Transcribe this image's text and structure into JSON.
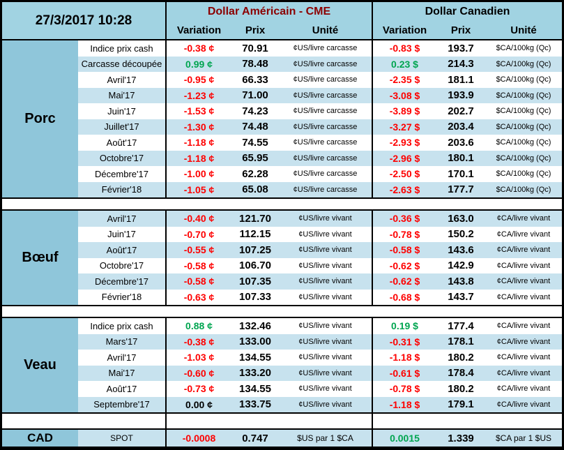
{
  "meta": {
    "timestamp": "27/3/2017 10:28"
  },
  "header": {
    "us": {
      "title": "Dollar Américain - CME",
      "cols": [
        "Variation",
        "Prix",
        "Unité"
      ]
    },
    "ca": {
      "title": "Dollar Canadien",
      "cols": [
        "Variation",
        "Prix",
        "Unité"
      ]
    }
  },
  "colors": {
    "header_blue": "#A1D3E2",
    "section_blue": "#8FC6DA",
    "row_alt_blue": "#C7E2EE",
    "negative_red": "#FE0000",
    "positive_green": "#00A550",
    "us_title_dark_red": "#8B0000",
    "border_black": "#000000"
  },
  "sections": [
    {
      "name": "Porc",
      "rows": [
        {
          "label": "Indice prix cash",
          "us_var": "-0.38 ¢",
          "us_dir": "neg",
          "us_prix": "70.91",
          "us_unit": "¢US/livre carcasse",
          "ca_var": "-0.83 $",
          "ca_dir": "neg",
          "ca_prix": "193.7",
          "ca_unit": "$CA/100kg (Qc)"
        },
        {
          "label": "Carcasse découpée",
          "us_var": "0.99 ¢",
          "us_dir": "pos",
          "us_prix": "78.48",
          "us_unit": "¢US/livre carcasse",
          "ca_var": "0.23 $",
          "ca_dir": "pos",
          "ca_prix": "214.3",
          "ca_unit": "$CA/100kg (Qc)"
        },
        {
          "label": "Avril'17",
          "us_var": "-0.95 ¢",
          "us_dir": "neg",
          "us_prix": "66.33",
          "us_unit": "¢US/livre carcasse",
          "ca_var": "-2.35 $",
          "ca_dir": "neg",
          "ca_prix": "181.1",
          "ca_unit": "$CA/100kg (Qc)"
        },
        {
          "label": "Mai'17",
          "us_var": "-1.23 ¢",
          "us_dir": "neg",
          "us_prix": "71.00",
          "us_unit": "¢US/livre carcasse",
          "ca_var": "-3.08 $",
          "ca_dir": "neg",
          "ca_prix": "193.9",
          "ca_unit": "$CA/100kg (Qc)"
        },
        {
          "label": "Juin'17",
          "us_var": "-1.53 ¢",
          "us_dir": "neg",
          "us_prix": "74.23",
          "us_unit": "¢US/livre carcasse",
          "ca_var": "-3.89 $",
          "ca_dir": "neg",
          "ca_prix": "202.7",
          "ca_unit": "$CA/100kg (Qc)"
        },
        {
          "label": "Juillet'17",
          "us_var": "-1.30 ¢",
          "us_dir": "neg",
          "us_prix": "74.48",
          "us_unit": "¢US/livre carcasse",
          "ca_var": "-3.27 $",
          "ca_dir": "neg",
          "ca_prix": "203.4",
          "ca_unit": "$CA/100kg (Qc)"
        },
        {
          "label": "Août'17",
          "us_var": "-1.18 ¢",
          "us_dir": "neg",
          "us_prix": "74.55",
          "us_unit": "¢US/livre carcasse",
          "ca_var": "-2.93 $",
          "ca_dir": "neg",
          "ca_prix": "203.6",
          "ca_unit": "$CA/100kg (Qc)"
        },
        {
          "label": "Octobre'17",
          "us_var": "-1.18 ¢",
          "us_dir": "neg",
          "us_prix": "65.95",
          "us_unit": "¢US/livre carcasse",
          "ca_var": "-2.96 $",
          "ca_dir": "neg",
          "ca_prix": "180.1",
          "ca_unit": "$CA/100kg (Qc)"
        },
        {
          "label": "Décembre'17",
          "us_var": "-1.00 ¢",
          "us_dir": "neg",
          "us_prix": "62.28",
          "us_unit": "¢US/livre carcasse",
          "ca_var": "-2.50 $",
          "ca_dir": "neg",
          "ca_prix": "170.1",
          "ca_unit": "$CA/100kg (Qc)"
        },
        {
          "label": "Février'18",
          "us_var": "-1.05 ¢",
          "us_dir": "neg",
          "us_prix": "65.08",
          "us_unit": "¢US/livre carcasse",
          "ca_var": "-2.63 $",
          "ca_dir": "neg",
          "ca_prix": "177.7",
          "ca_unit": "$CA/100kg (Qc)"
        }
      ]
    },
    {
      "name": "Bœuf",
      "rows": [
        {
          "label": "Avril'17",
          "us_var": "-0.40 ¢",
          "us_dir": "neg",
          "us_prix": "121.70",
          "us_unit": "¢US/livre vivant",
          "ca_var": "-0.36 $",
          "ca_dir": "neg",
          "ca_prix": "163.0",
          "ca_unit": "¢CA/livre vivant"
        },
        {
          "label": "Juin'17",
          "us_var": "-0.70 ¢",
          "us_dir": "neg",
          "us_prix": "112.15",
          "us_unit": "¢US/livre vivant",
          "ca_var": "-0.78 $",
          "ca_dir": "neg",
          "ca_prix": "150.2",
          "ca_unit": "¢CA/livre vivant"
        },
        {
          "label": "Août'17",
          "us_var": "-0.55 ¢",
          "us_dir": "neg",
          "us_prix": "107.25",
          "us_unit": "¢US/livre vivant",
          "ca_var": "-0.58 $",
          "ca_dir": "neg",
          "ca_prix": "143.6",
          "ca_unit": "¢CA/livre vivant"
        },
        {
          "label": "Octobre'17",
          "us_var": "-0.58 ¢",
          "us_dir": "neg",
          "us_prix": "106.70",
          "us_unit": "¢US/livre vivant",
          "ca_var": "-0.62 $",
          "ca_dir": "neg",
          "ca_prix": "142.9",
          "ca_unit": "¢CA/livre vivant"
        },
        {
          "label": "Décembre'17",
          "us_var": "-0.58 ¢",
          "us_dir": "neg",
          "us_prix": "107.35",
          "us_unit": "¢US/livre vivant",
          "ca_var": "-0.62 $",
          "ca_dir": "neg",
          "ca_prix": "143.8",
          "ca_unit": "¢CA/livre vivant"
        },
        {
          "label": "Février'18",
          "us_var": "-0.63 ¢",
          "us_dir": "neg",
          "us_prix": "107.33",
          "us_unit": "¢US/livre vivant",
          "ca_var": "-0.68 $",
          "ca_dir": "neg",
          "ca_prix": "143.7",
          "ca_unit": "¢CA/livre vivant"
        }
      ]
    },
    {
      "name": "Veau",
      "rows": [
        {
          "label": "Indice prix cash",
          "us_var": "0.88 ¢",
          "us_dir": "pos",
          "us_prix": "132.46",
          "us_unit": "¢US/livre vivant",
          "ca_var": "0.19 $",
          "ca_dir": "pos",
          "ca_prix": "177.4",
          "ca_unit": "¢CA/livre vivant"
        },
        {
          "label": "Mars'17",
          "us_var": "-0.38 ¢",
          "us_dir": "neg",
          "us_prix": "133.00",
          "us_unit": "¢US/livre vivant",
          "ca_var": "-0.31 $",
          "ca_dir": "neg",
          "ca_prix": "178.1",
          "ca_unit": "¢CA/livre vivant"
        },
        {
          "label": "Avril'17",
          "us_var": "-1.03 ¢",
          "us_dir": "neg",
          "us_prix": "134.55",
          "us_unit": "¢US/livre vivant",
          "ca_var": "-1.18 $",
          "ca_dir": "neg",
          "ca_prix": "180.2",
          "ca_unit": "¢CA/livre vivant"
        },
        {
          "label": "Mai'17",
          "us_var": "-0.60 ¢",
          "us_dir": "neg",
          "us_prix": "133.20",
          "us_unit": "¢US/livre vivant",
          "ca_var": "-0.61 $",
          "ca_dir": "neg",
          "ca_prix": "178.4",
          "ca_unit": "¢CA/livre vivant"
        },
        {
          "label": "Août'17",
          "us_var": "-0.73 ¢",
          "us_dir": "neg",
          "us_prix": "134.55",
          "us_unit": "¢US/livre vivant",
          "ca_var": "-0.78 $",
          "ca_dir": "neg",
          "ca_prix": "180.2",
          "ca_unit": "¢CA/livre vivant"
        },
        {
          "label": "Septembre'17",
          "us_var": "0.00 ¢",
          "us_dir": "zero",
          "us_prix": "133.75",
          "us_unit": "¢US/livre vivant",
          "ca_var": "-1.18 $",
          "ca_dir": "neg",
          "ca_prix": "179.1",
          "ca_unit": "¢CA/livre vivant"
        }
      ]
    }
  ],
  "spot": {
    "name": "CAD",
    "label": "SPOT",
    "us_var": "-0.0008",
    "us_dir": "neg",
    "us_prix": "0.747",
    "us_unit": "$US par 1 $CA",
    "ca_var": "0.0015",
    "ca_dir": "pos",
    "ca_prix": "1.339",
    "ca_unit": "$CA par 1 $US"
  }
}
